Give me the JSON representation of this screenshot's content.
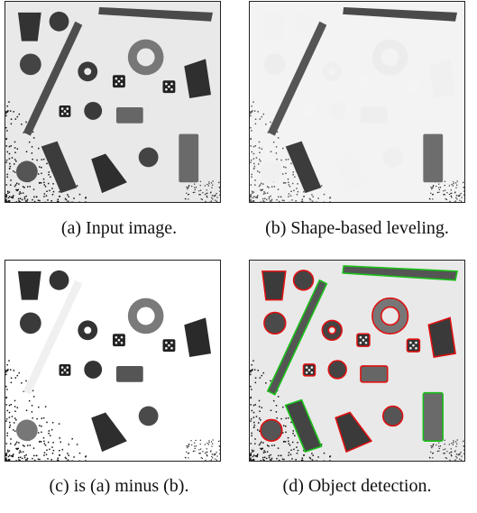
{
  "figure": {
    "panels": [
      {
        "id": "a",
        "caption": "(a) Input image.",
        "variant": "input"
      },
      {
        "id": "b",
        "caption": "(b) Shape-based leveling.",
        "variant": "leveling"
      },
      {
        "id": "c",
        "caption": "(c) is (a) minus (b).",
        "variant": "difference"
      },
      {
        "id": "d",
        "caption": "(d) Object detection.",
        "variant": "detection"
      }
    ],
    "detection_colors": {
      "contour_red": "#e01010",
      "contour_green": "#18c018"
    }
  }
}
